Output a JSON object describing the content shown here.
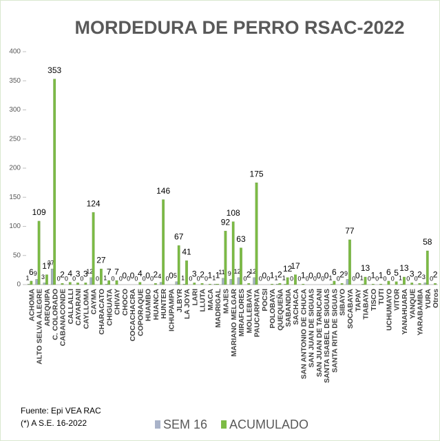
{
  "chart_data": {
    "type": "bar",
    "title": "MORDEDURA DE PERRO RSAC-2022",
    "categories": [
      "ACHOMA",
      "ALTO SELVA ALEGRE",
      "AREQUIPA",
      "C. COLORADO",
      "CABANACONDE",
      "CALLALLI",
      "CAYARANI",
      "CAYLLOMA",
      "CAYMA",
      "CHARACATO",
      "CHIGUATA",
      "CHIVAY",
      "CHOCO",
      "COCACHACRA",
      "COPORAQUE",
      "HUAMBO",
      "HUANCA",
      "HUNTER",
      "ICHUPAMPA",
      "JLBYR",
      "LA JOYA",
      "LARI",
      "LLUTA",
      "MACA",
      "MADRIGAL",
      "MAJES",
      "MARIANO MELGAR",
      "MIRAFLORES",
      "MOLLEBAYA",
      "PAUCARPATA",
      "POCSI",
      "POLOBAYA",
      "QUEQUEÑA",
      "SABANDIA",
      "SACHACA",
      "SAN ANTONIO DE CHUCA",
      "SAN JUAN DE SIGUAS",
      "SAN JUAN DE TARUCANI",
      "SANTA ISABEL DE SIGUAS",
      "SANTA RITA DE SIGUAS",
      "SIBAYO",
      "SOCABAYA",
      "TAPAY",
      "TIABAYA",
      "TISCO",
      "TUTI",
      "UCHUMAYO",
      "VITOR",
      "YANAHUARA",
      "YANQUE",
      "YARABAMBA",
      "YURA",
      "Otros"
    ],
    "series": [
      {
        "name": "SEM 16",
        "color": "#a9b3c9",
        "values": [
          1,
          9,
          3,
          27,
          0,
          0,
          0,
          0,
          12,
          0,
          1,
          0,
          0,
          0,
          0,
          0,
          0,
          4,
          0,
          5,
          1,
          0,
          0,
          0,
          1,
          11,
          9,
          12,
          0,
          12,
          0,
          0,
          1,
          1,
          0,
          0,
          0,
          0,
          0,
          1,
          0,
          9,
          0,
          1,
          0,
          0,
          0,
          0,
          1,
          0,
          0,
          3,
          0
        ]
      },
      {
        "name": "ACUMULADO",
        "color": "#7cbb45",
        "values": [
          6,
          109,
          17,
          353,
          2,
          4,
          3,
          3,
          124,
          27,
          7,
          7,
          0,
          0,
          4,
          0,
          2,
          146,
          0,
          67,
          41,
          3,
          2,
          1,
          1,
          92,
          108,
          63,
          2,
          175,
          0,
          1,
          2,
          12,
          17,
          1,
          0,
          0,
          0,
          6,
          2,
          77,
          0,
          13,
          1,
          1,
          6,
          5,
          13,
          3,
          2,
          58,
          2
        ]
      }
    ],
    "ylim": [
      0,
      400
    ],
    "yticks": [
      0,
      50,
      100,
      150,
      200,
      250,
      300,
      350,
      400
    ],
    "legend": "bottom",
    "notes": [
      "Fuente: Epi VEA RAC",
      "(*) A S.E. 16-2022"
    ]
  }
}
